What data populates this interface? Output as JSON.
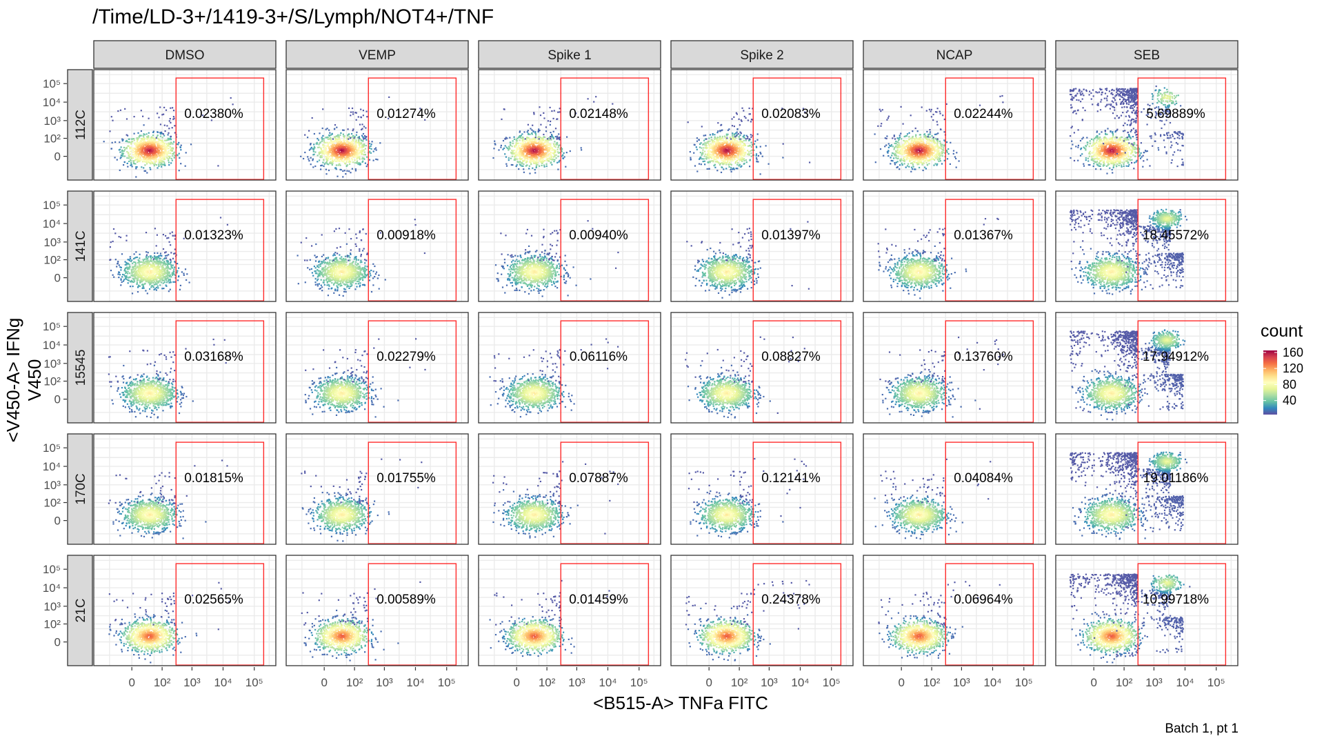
{
  "title": "/Time/LD-3+/1419-3+/S/Lymph/NOT4+/TNF",
  "caption": "Batch 1, pt 1",
  "chart_data": {
    "type": "scatter",
    "title": "/Time/LD-3+/1419-3+/S/Lymph/NOT4+/TNF",
    "xlabel": "<B515-A> TNFa FITC",
    "ylabel": "<V450-A> IFNg V450",
    "columns": [
      "DMSO",
      "VEMP",
      "Spike 1",
      "Spike 2",
      "NCAP",
      "SEB"
    ],
    "rows": [
      "112C",
      "141C",
      "15545",
      "170C",
      "21C"
    ],
    "gate_percentages": [
      [
        "0.02380%",
        "0.01274%",
        "0.02148%",
        "0.02083%",
        "0.02244%",
        "5.69889%"
      ],
      [
        "0.01323%",
        "0.00918%",
        "0.00940%",
        "0.01397%",
        "0.01367%",
        "18.45572%"
      ],
      [
        "0.03168%",
        "0.02279%",
        "0.06116%",
        "0.08827%",
        "0.13760%",
        "17.94912%"
      ],
      [
        "0.01815%",
        "0.01755%",
        "0.07887%",
        "0.12141%",
        "0.04084%",
        "19.01186%"
      ],
      [
        "0.02565%",
        "0.00589%",
        "0.01459%",
        "0.24378%",
        "0.06964%",
        "10.99718%"
      ]
    ],
    "x_ticks": [
      {
        "label": "0",
        "value": 0
      },
      {
        "label": "10²",
        "value": 100
      },
      {
        "label": "10³",
        "value": 1000
      },
      {
        "label": "10⁴",
        "value": 10000
      },
      {
        "label": "10⁵",
        "value": 100000
      }
    ],
    "y_ticks": [
      {
        "label": "0",
        "value": 0
      },
      {
        "label": "10²",
        "value": 100
      },
      {
        "label": "10³",
        "value": 1000
      },
      {
        "label": "10⁴",
        "value": 10000
      },
      {
        "label": "10⁵",
        "value": 100000
      }
    ],
    "gate": {
      "x_min": 300,
      "x_max": 200000,
      "y_min": -200,
      "y_max": 200000
    },
    "legend": {
      "title": "count",
      "ticks": [
        40,
        80,
        120,
        160
      ],
      "min": 5,
      "max": 165,
      "placement": "right"
    },
    "colors": {
      "gate": "#ff2a2a",
      "strip_bg": "#d9d9d9",
      "panel_border": "#333333",
      "grid": "#ebebeb",
      "palette": [
        "#5e4fa2",
        "#3288bd",
        "#66c2a5",
        "#abdda4",
        "#e6f598",
        "#ffffbf",
        "#fee08b",
        "#fdae61",
        "#f46d43",
        "#d53e4f",
        "#9e0142"
      ]
    },
    "grid": true
  }
}
